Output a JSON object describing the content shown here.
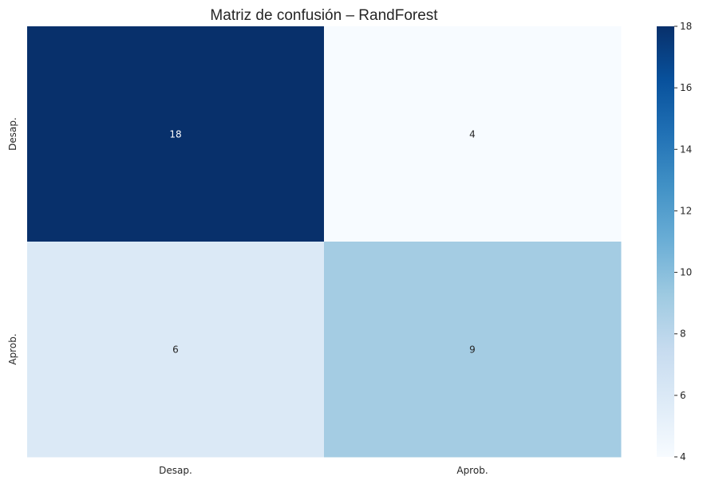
{
  "chart_data": {
    "type": "heatmap",
    "title": "Matriz de confusión – RandForest",
    "x_categories": [
      "Desap.",
      "Aprob."
    ],
    "y_categories": [
      "Desap.",
      "Aprob."
    ],
    "matrix": [
      [
        18,
        4
      ],
      [
        6,
        9
      ]
    ],
    "annotations": true,
    "colormap": "Blues",
    "color_range": [
      4,
      18
    ],
    "colorbar_ticks": [
      4,
      6,
      8,
      10,
      12,
      14,
      16,
      18
    ],
    "grid": false
  }
}
